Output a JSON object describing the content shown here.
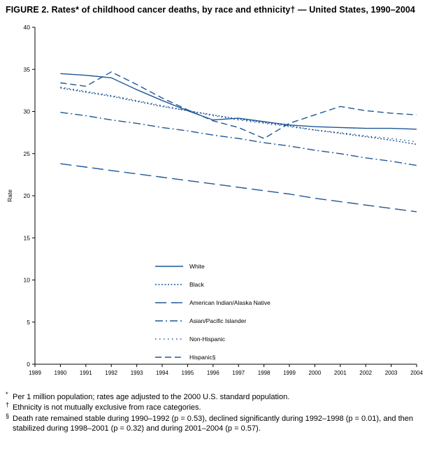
{
  "title": "FIGURE 2. Rates* of childhood cancer deaths, by race and ethnicity† — United States, 1990–2004",
  "footnotes": [
    {
      "marker": "*",
      "text": "Per 1 million population; rates age adjusted to the 2000 U.S. standard population."
    },
    {
      "marker": "†",
      "text": "Ethnicity is not mutually exclusive from race categories."
    },
    {
      "marker": "§",
      "text": "Death rate remained stable during 1990–1992 (p = 0.53), declined significantly during 1992–1998 (p = 0.01), and then stabilized during 1998–2001 (p = 0.32) and during 2001–2004 (p = 0.57)."
    }
  ],
  "colors": {
    "line": "#1d5796",
    "axis": "#000000"
  },
  "chart_data": {
    "type": "line",
    "title": "Rates of childhood cancer deaths, by race and ethnicity, United States, 1990–2004",
    "xlabel": "",
    "ylabel": "Rate",
    "ylim": [
      0,
      40
    ],
    "grid": false,
    "legend_position": "inside-lower-center",
    "y_ticks": [
      0,
      5,
      10,
      15,
      20,
      25,
      30,
      35,
      40
    ],
    "x_ticks": [
      1989,
      1990,
      1991,
      1992,
      1993,
      1994,
      1995,
      1996,
      1997,
      1998,
      1999,
      2000,
      2001,
      2002,
      2003,
      2004
    ],
    "x": [
      1990,
      1991,
      1992,
      1993,
      1994,
      1995,
      1996,
      1997,
      1998,
      1999,
      2000,
      2001,
      2002,
      2003,
      2004
    ],
    "series": [
      {
        "name": "White",
        "label": "White",
        "style": "solid",
        "values": [
          34.5,
          34.3,
          34.0,
          32.6,
          31.3,
          30.1,
          29.0,
          29.2,
          28.8,
          28.4,
          28.2,
          28.1,
          28.0,
          28.0,
          27.9
        ]
      },
      {
        "name": "Black",
        "label": "Black",
        "style": "fine_dotted",
        "values": [
          32.8,
          32.3,
          31.8,
          31.2,
          30.6,
          30.1,
          29.6,
          29.1,
          28.7,
          28.3,
          27.8,
          27.4,
          27.0,
          26.6,
          26.1
        ]
      },
      {
        "name": "American Indian/Alaska Native",
        "label": "American Indian/Alaska Native",
        "style": "long_dash",
        "values": [
          23.8,
          23.4,
          23.0,
          22.6,
          22.2,
          21.8,
          21.4,
          21.0,
          20.6,
          20.2,
          19.7,
          19.3,
          18.9,
          18.5,
          18.1
        ]
      },
      {
        "name": "Asian/Pacific Islander",
        "label": "Asian/Pacific Islander",
        "style": "dash_dot",
        "values": [
          29.9,
          29.5,
          29.0,
          28.6,
          28.1,
          27.7,
          27.2,
          26.8,
          26.3,
          25.9,
          25.4,
          25.0,
          24.5,
          24.1,
          23.6
        ]
      },
      {
        "name": "Non-Hispanic",
        "label": "Non-Hispanic",
        "style": "spaced_dots",
        "values": [
          32.9,
          32.4,
          31.9,
          31.3,
          30.7,
          30.1,
          29.5,
          29.0,
          28.6,
          28.2,
          27.8,
          27.5,
          27.1,
          26.8,
          26.4
        ]
      },
      {
        "name": "Hispanic",
        "label": "Hispanic§",
        "style": "dash",
        "values": [
          33.4,
          33.0,
          34.7,
          33.2,
          31.6,
          30.2,
          28.9,
          28.1,
          26.8,
          28.6,
          29.6,
          30.6,
          30.1,
          29.8,
          29.6
        ]
      }
    ]
  }
}
